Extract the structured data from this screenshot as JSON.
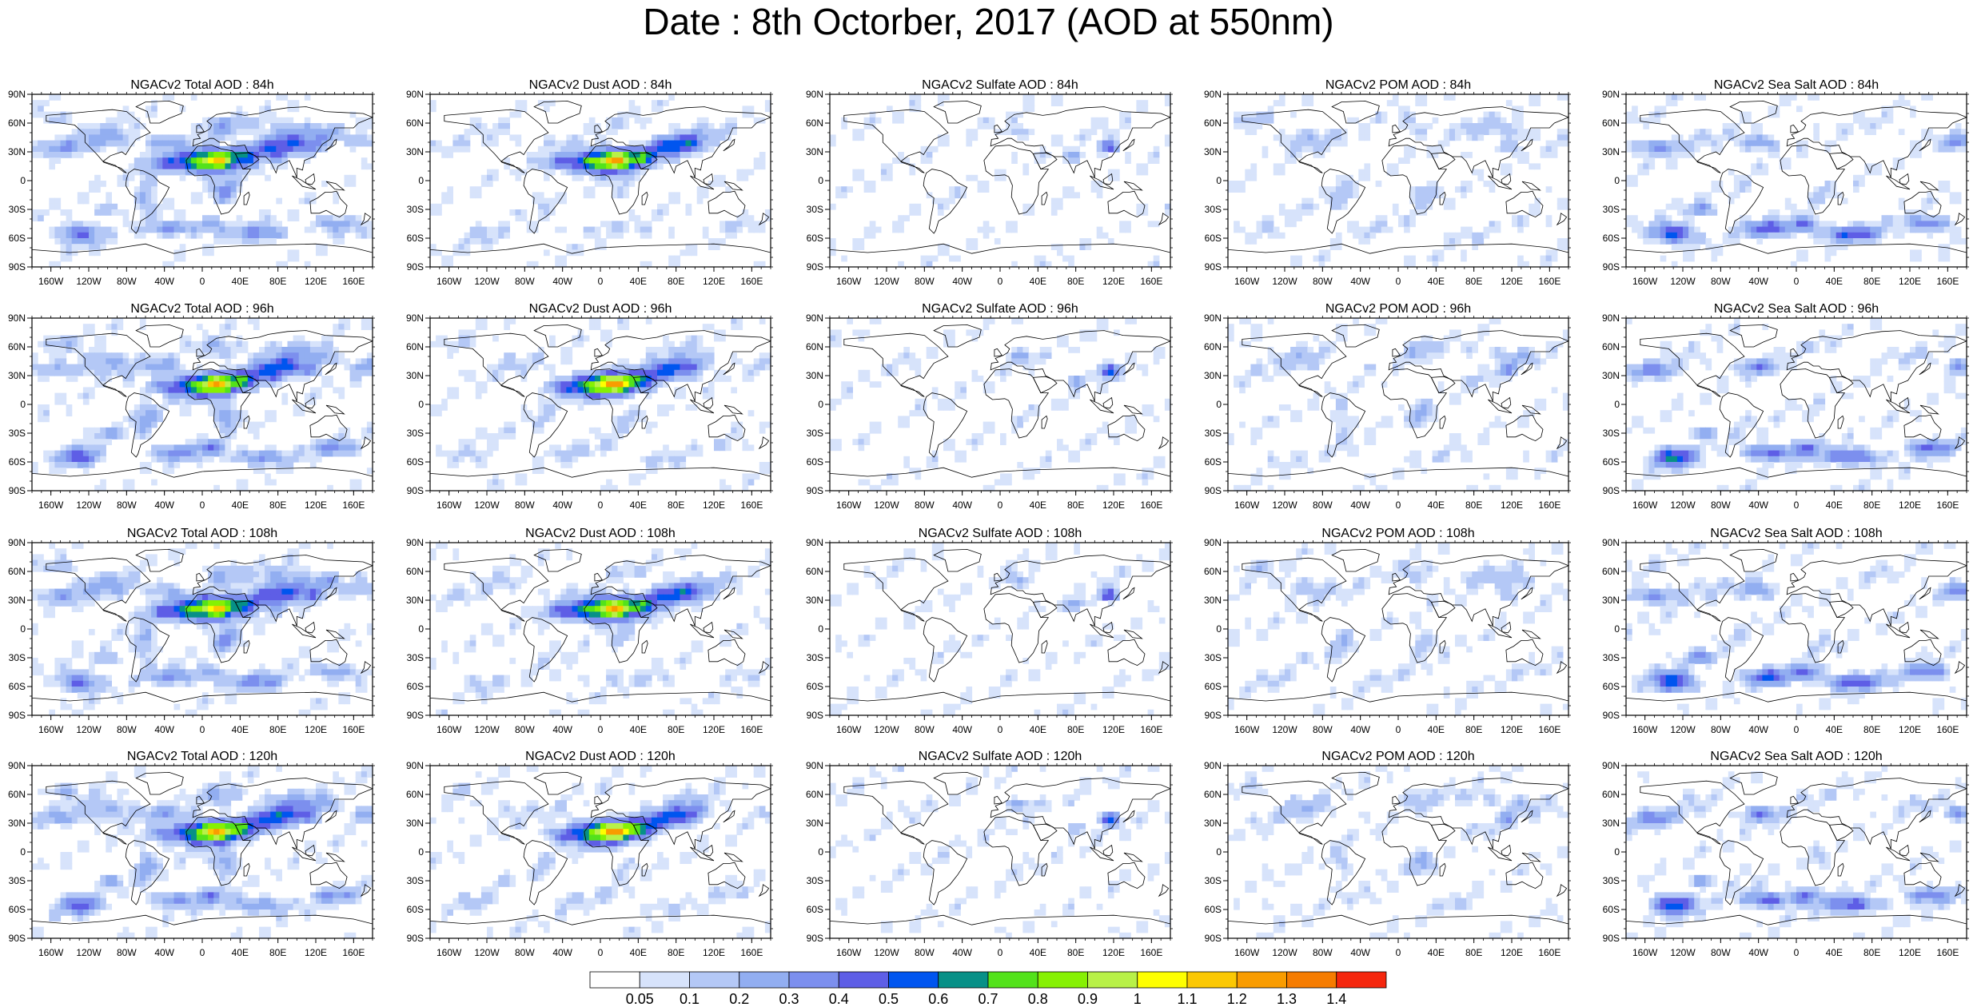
{
  "figure": {
    "title": "Date : 8th Octorber, 2017 (AOD at 550nm)"
  },
  "columns": [
    {
      "variable": "Total",
      "colors": {
        "land": 0.55,
        "dust": 0.9,
        "ocean": 0.55,
        "sulfate": 0.35
      }
    },
    {
      "variable": "Dust",
      "colors": {
        "land": 0.2,
        "dust": 0.95,
        "ocean": 0.15,
        "sulfate": 0.0
      }
    },
    {
      "variable": "Sulfate",
      "colors": {
        "land": 0.05,
        "dust": 0.0,
        "ocean": 0.0,
        "sulfate": 0.6
      }
    },
    {
      "variable": "POM",
      "colors": {
        "land": 0.35,
        "dust": 0.0,
        "ocean": 0.1,
        "sulfate": 0.3
      }
    },
    {
      "variable": "Sea Salt",
      "colors": {
        "land": 0.15,
        "dust": 0.0,
        "ocean": 0.75,
        "sulfate": 0.0
      }
    }
  ],
  "panel_titles": [
    [
      "NGACv2 Total AOD : 84h",
      "NGACv2 Dust AOD : 84h",
      "NGACv2 Sulfate AOD : 84h",
      "NGACv2 POM AOD : 84h",
      "NGACv2 Sea Salt AOD : 84h"
    ],
    [
      "NGACv2 Total AOD : 96h",
      "NGACv2 Dust AOD : 96h",
      "NGACv2 Sulfate AOD : 96h",
      "NGACv2 POM AOD : 96h",
      "NGACv2 Sea Salt AOD : 96h"
    ],
    [
      "NGACv2 Total AOD : 108h",
      "NGACv2 Dust AOD : 108h",
      "NGACv2 Sulfate AOD : 108h",
      "NGACv2 POM AOD : 108h",
      "NGACv2 Sea Salt AOD : 108h"
    ],
    [
      "NGACv2 Total AOD : 120h",
      "NGACv2 Dust AOD : 120h",
      "NGACv2 Sulfate AOD : 120h",
      "NGACv2 POM AOD : 120h",
      "NGACv2 Sea Salt  AOD : 120h"
    ]
  ],
  "axes": {
    "lat_labels": [
      "90N",
      "60N",
      "30N",
      "0",
      "30S",
      "60S",
      "90S"
    ],
    "lat_values": [
      90,
      60,
      30,
      0,
      -30,
      -60,
      -90
    ],
    "lon_labels": [
      "160W",
      "120W",
      "80W",
      "40W",
      "0",
      "40E",
      "80E",
      "120E",
      "160E"
    ],
    "lon_values": [
      -160,
      -120,
      -80,
      -40,
      0,
      40,
      80,
      120,
      160
    ],
    "lon_range": [
      -180,
      180
    ],
    "lat_range": [
      -90,
      90
    ]
  },
  "colorbar": {
    "labels": [
      "0.05",
      "0.1",
      "0.2",
      "0.3",
      "0.4",
      "0.5",
      "0.6",
      "0.7",
      "0.8",
      "0.9",
      "1",
      "1.1",
      "1.2",
      "1.3",
      "1.4"
    ],
    "colors": [
      "#ffffff",
      "#d7e3fb",
      "#b4c8f6",
      "#92aef1",
      "#7c8fee",
      "#5e5ee6",
      "#0055ef",
      "#079087",
      "#53e21b",
      "#86f103",
      "#b8f148",
      "#feff01",
      "#fbc803",
      "#f99c00",
      "#f67c00",
      "#f5260d"
    ]
  },
  "chart_data": {
    "type": "heatmap",
    "title": "Date : 8th Octorber, 2017 (AOD at 550nm)",
    "layout": "4 rows (forecast hours 84h, 96h, 108h, 120h) x 5 columns (Total, Dust, Sulfate, POM, Sea Salt AOD)",
    "x_range": [
      -180,
      180
    ],
    "y_range": [
      -90,
      90
    ],
    "colorbar_levels": [
      0.05,
      0.1,
      0.2,
      0.3,
      0.4,
      0.5,
      0.6,
      0.7,
      0.8,
      0.9,
      1,
      1.1,
      1.2,
      1.3,
      1.4
    ]
  }
}
